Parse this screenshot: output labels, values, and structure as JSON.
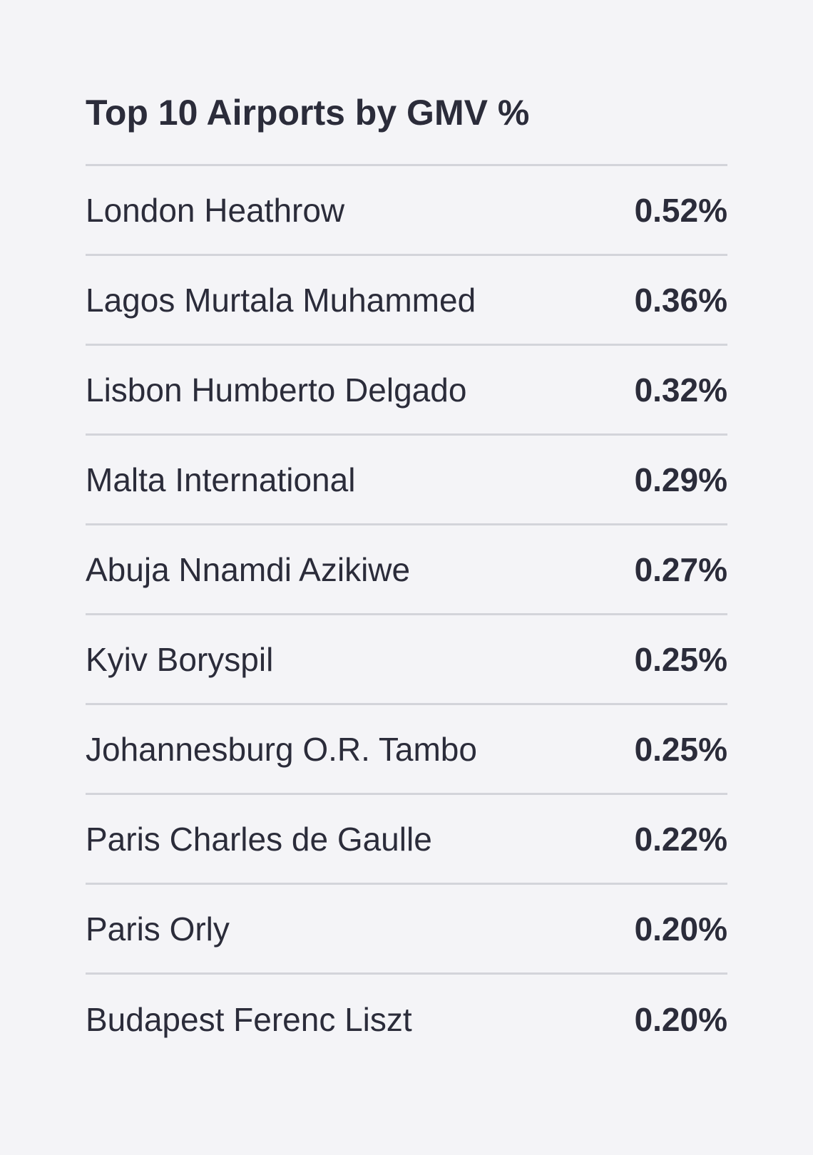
{
  "title": "Top 10 Airports by GMV %",
  "rows": [
    {
      "name": "London Heathrow",
      "value": "0.52%"
    },
    {
      "name": "Lagos Murtala Muhammed",
      "value": "0.36%"
    },
    {
      "name": "Lisbon Humberto Delgado",
      "value": "0.32%"
    },
    {
      "name": "Malta International",
      "value": "0.29%"
    },
    {
      "name": "Abuja Nnamdi Azikiwe",
      "value": "0.27%"
    },
    {
      "name": "Kyiv Boryspil",
      "value": "0.25%"
    },
    {
      "name": "Johannesburg O.R. Tambo",
      "value": "0.25%"
    },
    {
      "name": "Paris Charles de Gaulle",
      "value": "0.22%"
    },
    {
      "name": "Paris Orly",
      "value": "0.20%"
    },
    {
      "name": "Budapest Ferenc Liszt",
      "value": "0.20%"
    }
  ]
}
